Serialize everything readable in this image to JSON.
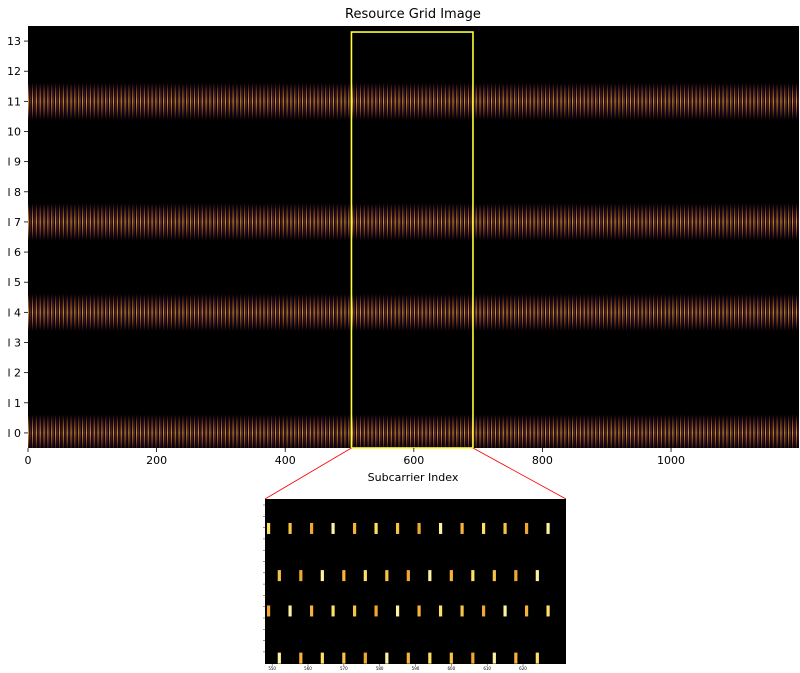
{
  "chart_data": {
    "type": "heatmap",
    "title": "Resource Grid Image",
    "xlabel": "Subcarrier Index",
    "ylabel": "",
    "xlim": [
      0,
      1199
    ],
    "ylim": [
      -0.5,
      13.5
    ],
    "x_ticks": [
      0,
      200,
      400,
      600,
      800,
      1000
    ],
    "y_ticks": [
      0,
      1,
      2,
      3,
      4,
      5,
      6,
      7,
      8,
      9,
      10,
      11,
      12,
      13
    ],
    "y_tick_labels": [
      "l 0",
      "l 1",
      "l 2",
      "l 3",
      "l 4",
      "l 5",
      "l 6",
      "l 7",
      "l 8",
      "l 9",
      "10",
      "11",
      "12",
      "13"
    ],
    "colormap": "inferno",
    "active_symbols": [
      0,
      4,
      7,
      11
    ],
    "pilot_spacing": 6,
    "highlight": {
      "x_range": [
        503,
        692
      ],
      "y_range": [
        -0.5,
        13.3
      ],
      "color": "#ffff33"
    },
    "inset": {
      "x_range": [
        548,
        632
      ],
      "x_ticks": [
        550,
        560,
        570,
        580,
        590,
        600,
        610,
        620
      ],
      "rows": [
        {
          "symbol": 11,
          "x_start": 549,
          "spacing": 6,
          "count": 14
        },
        {
          "symbol": 7,
          "x_start": 552,
          "spacing": 6,
          "count": 13
        },
        {
          "symbol": 4,
          "x_start": 549,
          "spacing": 6,
          "count": 14
        },
        {
          "symbol": 0,
          "x_start": 552,
          "spacing": 6,
          "count": 13
        }
      ]
    }
  }
}
